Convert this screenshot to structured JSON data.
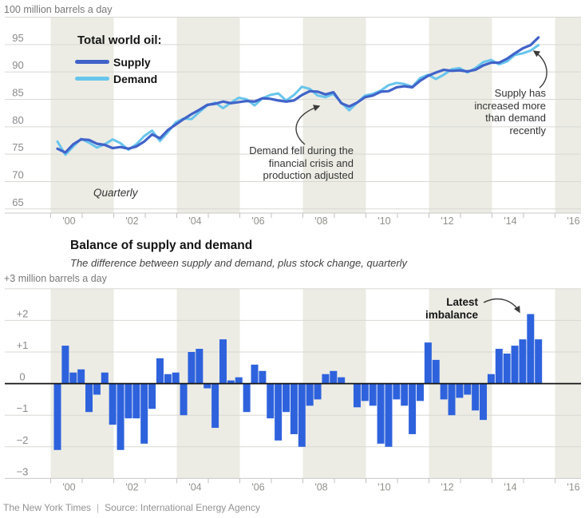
{
  "top_chart": {
    "unit_label": "100 million barrels a day",
    "legend": {
      "title": "Total world oil:",
      "items": [
        {
          "label": "Supply",
          "color": "#4163c9"
        },
        {
          "label": "Demand",
          "color": "#68c5ec"
        }
      ]
    },
    "quarterly_note": "Quarterly",
    "annotations": [
      {
        "id": "demand-fell",
        "text": "Demand fell during the\nfinancial crisis and\nproduction adjusted"
      },
      {
        "id": "supply-increased",
        "text": "Supply has\nincreased more\nthan demand\nrecently"
      }
    ]
  },
  "bottom_chart": {
    "title": "Balance of supply and demand",
    "subtitle": "The difference between supply and demand, plus stock change, quarterly",
    "unit_label": "+3 million barrels a day",
    "annotation": {
      "id": "latest-imbalance",
      "text": "Latest\nimbalance"
    }
  },
  "footer": {
    "credit": "The New York Times",
    "separator": "|",
    "source": "Source: International Energy Agency"
  },
  "style": {
    "band_color": "#ECECE4",
    "gridline_color": "#d8d8d3",
    "axis_color": "#c9c9c9",
    "tick_color": "#c2c2c2",
    "zero_line_color": "#151515",
    "axis_label_color": "#8a8a8a",
    "year_label_color": "#90908a",
    "arrow_color": "#3c3c3c"
  },
  "chart_data": [
    {
      "type": "line",
      "title": "Total world oil",
      "ylabel": "million barrels a day",
      "frequency": "quarterly",
      "x_start": "2000 Q1",
      "x_end": "2015 Q2",
      "x_tick_labels": [
        "'00",
        "'02",
        "'04",
        "'06",
        "'08",
        "'10",
        "'12",
        "'14",
        "'16"
      ],
      "y_ticks": [
        65,
        70,
        75,
        80,
        85,
        90,
        95,
        100
      ],
      "ylim": [
        65,
        100
      ],
      "grid": true,
      "legend_position": "top-left",
      "series": [
        {
          "name": "Supply",
          "color": "#4163c9",
          "values": [
            76.0,
            75.3,
            76.8,
            77.7,
            77.6,
            76.9,
            76.7,
            76.1,
            76.3,
            76.0,
            76.4,
            77.3,
            78.6,
            77.9,
            79.4,
            80.4,
            81.4,
            82.3,
            83.1,
            84.0,
            84.2,
            84.6,
            84.3,
            84.5,
            84.7,
            84.6,
            85.2,
            85.1,
            84.8,
            84.6,
            84.8,
            85.8,
            86.5,
            86.4,
            85.9,
            86.3,
            84.3,
            83.7,
            84.4,
            85.4,
            85.7,
            86.4,
            86.5,
            87.2,
            87.4,
            87.2,
            88.4,
            89.3,
            89.9,
            90.4,
            90.2,
            90.3,
            90.1,
            90.4,
            91.2,
            91.7,
            91.7,
            92.4,
            93.4,
            94.3,
            94.9,
            96.3
          ]
        },
        {
          "name": "Demand",
          "color": "#68c5ec",
          "values": [
            77.3,
            74.9,
            76.4,
            77.8,
            77.1,
            76.2,
            76.8,
            77.7,
            77.0,
            75.8,
            76.8,
            78.3,
            79.3,
            77.4,
            79.0,
            80.8,
            81.5,
            81.4,
            82.7,
            83.9,
            84.4,
            83.4,
            84.4,
            85.3,
            85.0,
            83.9,
            85.2,
            85.8,
            86.1,
            84.8,
            85.8,
            87.3,
            86.9,
            85.7,
            85.4,
            86.0,
            84.4,
            83.0,
            84.4,
            85.7,
            86.0,
            86.6,
            87.6,
            88.0,
            87.8,
            87.3,
            88.9,
            89.5,
            88.7,
            89.5,
            90.5,
            90.7,
            89.9,
            90.7,
            91.8,
            92.2,
            91.4,
            91.9,
            93.1,
            93.4,
            93.9,
            94.9
          ]
        }
      ]
    },
    {
      "type": "bar",
      "title": "Balance of supply and demand",
      "ylabel": "million barrels a day",
      "frequency": "quarterly",
      "x_start": "2000 Q1",
      "x_end": "2015 Q2",
      "bar_color": "#2e62dd",
      "x_tick_labels": [
        "'00",
        "'02",
        "'04",
        "'06",
        "'08",
        "'10",
        "'12",
        "'14",
        "'16"
      ],
      "y_ticks": [
        -3,
        -2,
        -1,
        0,
        1,
        2,
        3
      ],
      "y_tick_labels": [
        "−3",
        "−2",
        "−1",
        "0",
        "+1",
        "+2",
        "+3"
      ],
      "ylim": [
        -3,
        3
      ],
      "grid": true,
      "values": [
        -2.1,
        1.2,
        0.35,
        0.45,
        -0.9,
        -0.35,
        0.35,
        -1.3,
        -2.1,
        -1.1,
        -1.1,
        -1.9,
        -0.8,
        0.8,
        0.3,
        0.35,
        -1.0,
        1.0,
        1.1,
        -0.15,
        -1.4,
        1.4,
        0.1,
        0.2,
        -0.9,
        0.6,
        0.4,
        -1.1,
        -1.8,
        -0.9,
        -1.6,
        -2.0,
        -0.7,
        -0.5,
        0.3,
        0.4,
        0.2,
        0.0,
        -0.75,
        -0.55,
        -0.7,
        -1.9,
        -2.0,
        -0.5,
        -0.7,
        -1.6,
        -0.55,
        1.3,
        0.75,
        -0.5,
        -1.0,
        -0.45,
        -0.35,
        -0.85,
        -1.15,
        0.3,
        1.1,
        0.95,
        1.2,
        1.4,
        2.2,
        1.4
      ]
    }
  ]
}
